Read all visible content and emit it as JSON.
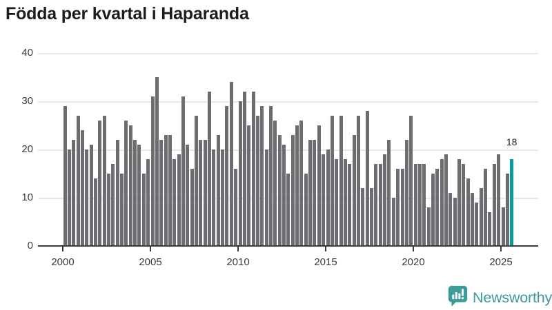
{
  "title": "Födda per kvartal i Haparanda",
  "chart_data": {
    "type": "bar",
    "title": "Födda per kvartal i Haparanda",
    "x_unit": "quarter",
    "x_start": "2000-Q1",
    "x_end": "2025-Q3",
    "values": [
      29,
      20,
      22,
      27,
      24,
      20,
      21,
      14,
      26,
      27,
      15,
      17,
      22,
      15,
      26,
      25,
      22,
      21,
      15,
      18,
      31,
      35,
      22,
      23,
      23,
      18,
      19,
      31,
      21,
      16,
      27,
      22,
      22,
      32,
      20,
      23,
      20,
      29,
      34,
      16,
      30,
      32,
      25,
      32,
      27,
      29,
      20,
      29,
      26,
      23,
      21,
      15,
      23,
      25,
      26,
      15,
      22,
      22,
      25,
      19,
      20,
      27,
      18,
      27,
      18,
      17,
      23,
      27,
      12,
      28,
      12,
      17,
      17,
      19,
      22,
      10,
      16,
      16,
      22,
      27,
      17,
      17,
      17,
      8,
      15,
      16,
      18,
      19,
      11,
      10,
      18,
      17,
      14,
      11,
      9,
      12,
      16,
      7,
      17,
      19,
      8,
      15,
      18
    ],
    "highlight": {
      "index": 102,
      "quarter": "2025-Q3",
      "value": 18,
      "label": "18"
    },
    "ylim": [
      0,
      40
    ],
    "y_ticks": [
      0,
      10,
      20,
      30,
      40
    ],
    "x_ticks": [
      2000,
      2005,
      2010,
      2015,
      2020,
      2025
    ],
    "grid": true,
    "legend": "none",
    "bar_color": "#6c6c71",
    "highlight_color": "#0b9c99"
  },
  "annotation": {
    "label": "18"
  },
  "y_axis": {
    "labels": [
      "40",
      "30",
      "20",
      "10",
      "0"
    ]
  },
  "x_axis": {
    "labels": [
      "2000",
      "2005",
      "2010",
      "2015",
      "2020",
      "2025"
    ]
  },
  "logo": {
    "text": "Newsworthy",
    "color": "#3d9c98"
  }
}
